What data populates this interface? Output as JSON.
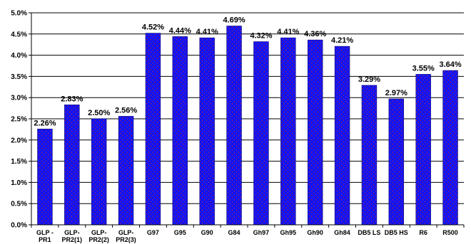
{
  "chart_data": {
    "type": "bar",
    "categories": [
      "GLP-PR1",
      "GLP-PR2(1)",
      "GLP-PR2(2)",
      "GLP-PR2(3)",
      "G97",
      "G95",
      "G90",
      "G84",
      "Gh97",
      "Gh95",
      "Gh90",
      "Gh84",
      "DB5 LS",
      "DB5 HS",
      "R6",
      "R500"
    ],
    "category_lines": [
      [
        "GLP -",
        "PR1"
      ],
      [
        "GLP-",
        "PR2(1)"
      ],
      [
        "GLP-",
        "PR2(2)"
      ],
      [
        "GLP-",
        "PR2(3)"
      ],
      [
        "G97"
      ],
      [
        "G95"
      ],
      [
        "G90"
      ],
      [
        "G84"
      ],
      [
        "Gh97"
      ],
      [
        "Gh95"
      ],
      [
        "Gh90"
      ],
      [
        "Gh84"
      ],
      [
        "DB5 LS"
      ],
      [
        "DB5 HS"
      ],
      [
        "R6"
      ],
      [
        "R500"
      ]
    ],
    "values": [
      2.26,
      2.83,
      2.5,
      2.56,
      4.52,
      4.44,
      4.41,
      4.69,
      4.32,
      4.41,
      4.36,
      4.21,
      3.29,
      2.97,
      3.55,
      3.64
    ],
    "data_labels": [
      "2.26%",
      "2.83%",
      "2.50%",
      "2.56%",
      "4.52%",
      "4.44%",
      "4.41%",
      "4.69%",
      "4.32%",
      "4.41%",
      "4.36%",
      "4.21%",
      "3.29%",
      "2.97%",
      "3.55%",
      "3.64%"
    ],
    "yticks": [
      0,
      0.5,
      1.0,
      1.5,
      2.0,
      2.5,
      3.0,
      3.5,
      4.0,
      4.5,
      5.0
    ],
    "ytick_labels": [
      "0.0%",
      "0.5%",
      "1.0%",
      "1.5%",
      "2.0%",
      "2.5%",
      "3.0%",
      "3.5%",
      "4.0%",
      "4.5%",
      "5.0%"
    ],
    "ylim": [
      0,
      5.0
    ],
    "grid": "horizontal",
    "legend": "none",
    "colors": {
      "bar_fill": "#1414f0",
      "bar_dot": "#d02020",
      "bar_stroke": "#0a0a78",
      "grid": "#000000",
      "axis": "#000000",
      "text": "#000000"
    }
  }
}
